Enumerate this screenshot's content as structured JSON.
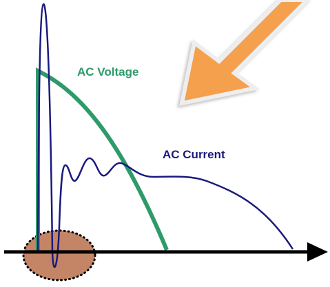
{
  "labels": {
    "voltage": "AC Voltage",
    "current": "AC Current"
  }
}
